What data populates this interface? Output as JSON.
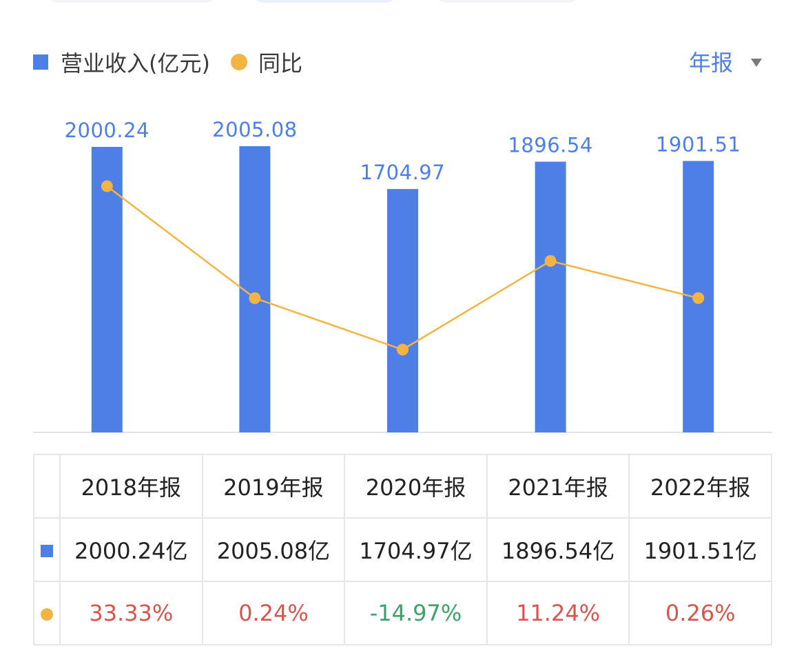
{
  "legend": {
    "revenue_label": "营业收入(亿元)",
    "yoy_label": "同比"
  },
  "period_selector": {
    "label": "年报"
  },
  "colors": {
    "bar": "#4d7fe6",
    "line": "#f4b443",
    "positive": "#d9534f",
    "negative": "#3aa36a"
  },
  "chart_data": {
    "type": "bar",
    "categories": [
      "2018年报",
      "2019年报",
      "2020年报",
      "2021年报",
      "2022年报"
    ],
    "series": [
      {
        "name": "营业收入(亿元)",
        "type": "bar",
        "values": [
          2000.24,
          2005.08,
          1704.97,
          1896.54,
          1901.51
        ],
        "labels": [
          "2000.24",
          "2005.08",
          "1704.97",
          "1896.54",
          "1901.51"
        ]
      },
      {
        "name": "同比",
        "type": "line",
        "values": [
          33.33,
          0.24,
          -14.97,
          11.24,
          0.26
        ]
      }
    ],
    "grid": false
  },
  "table": {
    "headers": [
      "2018年报",
      "2019年报",
      "2020年报",
      "2021年报",
      "2022年报"
    ],
    "revenue": [
      "2000.24亿",
      "2005.08亿",
      "1704.97亿",
      "1896.54亿",
      "1901.51亿"
    ],
    "yoy": [
      "33.33%",
      "0.24%",
      "-14.97%",
      "11.24%",
      "0.26%"
    ]
  }
}
